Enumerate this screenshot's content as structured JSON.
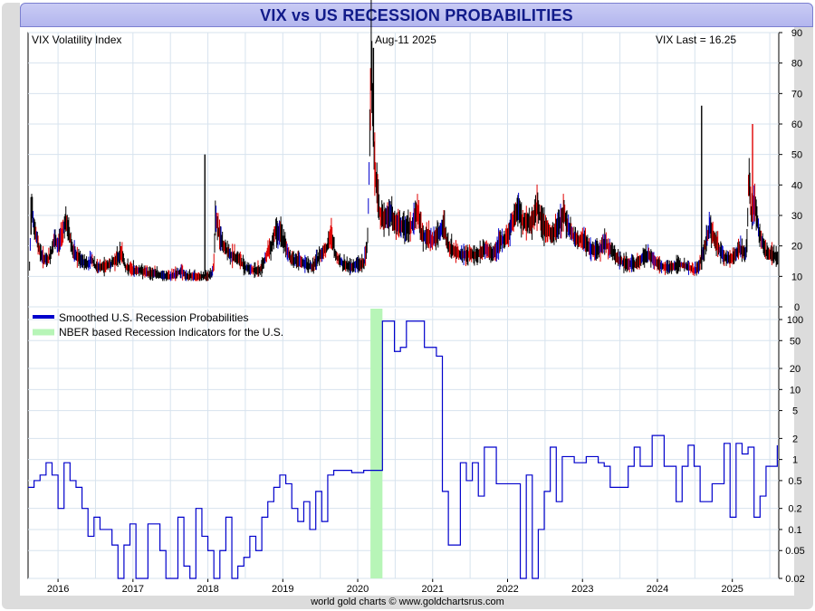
{
  "title": "VIX vs US RECESSION PROBABILITIES",
  "footer": "world gold charts © www.goldchartsrus.com",
  "colors": {
    "vix_up": "#000000",
    "vix_down": "#e00000",
    "vix_other": "#0000cc",
    "recession_prob": "#0000cc",
    "nber_band": "#b7f5b7",
    "grid": "#d7e3ee"
  },
  "chart_data": [
    {
      "type": "bar",
      "panel": "top",
      "label_left": "VIX Volatility Index",
      "label_center": "Aug-11  2025",
      "label_right": "VIX Last = 16.25",
      "ylim": [
        0,
        90
      ],
      "y_ticks": [
        0,
        10,
        20,
        30,
        40,
        50,
        60,
        70,
        80,
        90
      ],
      "x_ticks": [
        "2016",
        "2017",
        "2018",
        "2019",
        "2020",
        "2021",
        "2022",
        "2023",
        "2024",
        "2025"
      ],
      "x_range": [
        2015.6,
        2025.62
      ],
      "grid": true,
      "series": [
        {
          "name": "VIX Volatility Index",
          "x": [
            2015.62,
            2015.65,
            2015.68,
            2015.72,
            2015.76,
            2015.8,
            2015.85,
            2015.9,
            2015.95,
            2016.0,
            2016.05,
            2016.1,
            2016.15,
            2016.2,
            2016.3,
            2016.4,
            2016.45,
            2016.5,
            2016.6,
            2016.7,
            2016.8,
            2016.85,
            2016.9,
            2017.0,
            2017.1,
            2017.2,
            2017.3,
            2017.4,
            2017.5,
            2017.6,
            2017.65,
            2017.7,
            2017.8,
            2017.9,
            2018.0,
            2018.05,
            2018.08,
            2018.1,
            2018.15,
            2018.2,
            2018.3,
            2018.4,
            2018.5,
            2018.6,
            2018.7,
            2018.8,
            2018.85,
            2018.9,
            2018.97,
            2019.0,
            2019.1,
            2019.2,
            2019.3,
            2019.4,
            2019.5,
            2019.6,
            2019.65,
            2019.7,
            2019.8,
            2019.9,
            2020.0,
            2020.08,
            2020.13,
            2020.16,
            2020.18,
            2020.2,
            2020.22,
            2020.25,
            2020.3,
            2020.35,
            2020.4,
            2020.45,
            2020.5,
            2020.6,
            2020.7,
            2020.75,
            2020.8,
            2020.85,
            2020.9,
            2021.0,
            2021.1,
            2021.15,
            2021.2,
            2021.3,
            2021.4,
            2021.5,
            2021.6,
            2021.7,
            2021.8,
            2021.9,
            2022.0,
            2022.1,
            2022.15,
            2022.2,
            2022.3,
            2022.4,
            2022.45,
            2022.5,
            2022.6,
            2022.7,
            2022.75,
            2022.8,
            2022.9,
            2023.0,
            2023.1,
            2023.2,
            2023.3,
            2023.4,
            2023.5,
            2023.6,
            2023.7,
            2023.8,
            2023.9,
            2024.0,
            2024.1,
            2024.2,
            2024.3,
            2024.4,
            2024.5,
            2024.55,
            2024.6,
            2024.7,
            2024.8,
            2024.9,
            2025.0,
            2025.1,
            2025.15,
            2025.18,
            2025.2,
            2025.22,
            2025.25,
            2025.3,
            2025.35,
            2025.4,
            2025.45,
            2025.5,
            2025.55,
            2025.6
          ],
          "values": [
            13,
            35,
            26,
            22,
            18,
            16,
            15,
            17,
            22,
            20,
            24,
            28,
            24,
            18,
            15,
            14,
            16,
            13,
            13,
            14,
            16,
            18,
            13,
            12,
            12,
            11,
            11,
            10,
            10,
            11,
            12,
            10,
            10,
            10,
            10,
            11,
            14,
            30,
            24,
            20,
            17,
            16,
            13,
            12,
            12,
            18,
            20,
            25,
            24,
            22,
            16,
            15,
            14,
            13,
            17,
            20,
            24,
            17,
            14,
            13,
            14,
            14,
            20,
            55,
            85,
            65,
            48,
            40,
            30,
            28,
            30,
            30,
            27,
            26,
            26,
            28,
            32,
            24,
            23,
            22,
            24,
            27,
            20,
            18,
            17,
            17,
            17,
            19,
            17,
            21,
            23,
            30,
            32,
            28,
            27,
            33,
            28,
            26,
            23,
            28,
            31,
            27,
            22,
            22,
            19,
            18,
            21,
            18,
            15,
            14,
            14,
            16,
            17,
            14,
            13,
            13,
            14,
            13,
            12,
            13,
            17,
            26,
            20,
            16,
            16,
            19,
            18,
            17,
            22,
            45,
            30,
            35,
            25,
            21,
            18,
            17,
            17,
            16
          ],
          "spikes": [
            [
              2015.64,
              36
            ],
            [
              2017.96,
              50
            ],
            [
              2020.21,
              85
            ],
            [
              2024.59,
              66
            ],
            [
              2025.27,
              60
            ]
          ]
        }
      ]
    },
    {
      "type": "line",
      "panel": "bottom",
      "y_scale": "log",
      "y_ticks": [
        0.02,
        0.05,
        0.1,
        0.2,
        0.5,
        1,
        2,
        5,
        10,
        20,
        50,
        100
      ],
      "y_tick_labels": [
        "0.02",
        "0.05",
        "0.1",
        "0.2",
        "0.5",
        "1",
        "2",
        "5",
        "10",
        "20",
        "50",
        "100"
      ],
      "ylim": [
        0.02,
        100
      ],
      "x_ticks": [
        "2016",
        "2017",
        "2018",
        "2019",
        "2020",
        "2021",
        "2022",
        "2023",
        "2024",
        "2025"
      ],
      "x_range": [
        2015.6,
        2025.62
      ],
      "grid": true,
      "legend_position": "top-left",
      "legend": [
        "Smoothed U.S. Recession Probabilities",
        "NBER based Recession Indicators for the U.S."
      ],
      "bands": [
        {
          "name": "NBER based Recession Indicators for the U.S.",
          "x_start": 2020.17,
          "x_end": 2020.33
        }
      ],
      "series": [
        {
          "name": "Smoothed U.S. Recession Probabilities",
          "x": [
            2015.6,
            2015.68,
            2015.76,
            2015.84,
            2015.92,
            2016.0,
            2016.08,
            2016.16,
            2016.24,
            2016.32,
            2016.4,
            2016.48,
            2016.56,
            2016.64,
            2016.72,
            2016.8,
            2016.88,
            2016.96,
            2017.04,
            2017.12,
            2017.2,
            2017.28,
            2017.36,
            2017.44,
            2017.52,
            2017.6,
            2017.68,
            2017.76,
            2017.84,
            2017.92,
            2018.0,
            2018.08,
            2018.16,
            2018.24,
            2018.32,
            2018.4,
            2018.48,
            2018.56,
            2018.64,
            2018.72,
            2018.8,
            2018.88,
            2018.96,
            2019.04,
            2019.12,
            2019.2,
            2019.28,
            2019.36,
            2019.44,
            2019.52,
            2019.6,
            2019.68,
            2019.76,
            2019.84,
            2019.92,
            2020.0,
            2020.08,
            2020.17,
            2020.25,
            2020.33,
            2020.41,
            2020.49,
            2020.57,
            2020.65,
            2020.73,
            2020.81,
            2020.89,
            2020.97,
            2021.05,
            2021.13,
            2021.21,
            2021.29,
            2021.37,
            2021.45,
            2021.53,
            2021.61,
            2021.69,
            2021.77,
            2021.85,
            2021.93,
            2022.01,
            2022.09,
            2022.17,
            2022.25,
            2022.33,
            2022.41,
            2022.49,
            2022.57,
            2022.65,
            2022.73,
            2022.81,
            2022.89,
            2022.97,
            2023.05,
            2023.13,
            2023.21,
            2023.29,
            2023.37,
            2023.45,
            2023.53,
            2023.61,
            2023.69,
            2023.77,
            2023.85,
            2023.93,
            2024.01,
            2024.09,
            2024.17,
            2024.25,
            2024.33,
            2024.41,
            2024.49,
            2024.57,
            2024.65,
            2024.73,
            2024.81,
            2024.89,
            2024.97,
            2025.05,
            2025.13,
            2025.21,
            2025.29,
            2025.37,
            2025.45,
            2025.53,
            2025.6
          ],
          "values": [
            0.4,
            0.5,
            0.6,
            0.9,
            0.6,
            0.2,
            0.9,
            0.5,
            0.4,
            0.2,
            0.08,
            0.15,
            0.1,
            0.1,
            0.06,
            0.02,
            0.06,
            0.12,
            0.02,
            0.02,
            0.12,
            0.12,
            0.05,
            0.02,
            0.02,
            0.15,
            0.03,
            0.02,
            0.2,
            0.08,
            0.05,
            0.02,
            0.05,
            0.15,
            0.02,
            0.03,
            0.04,
            0.08,
            0.05,
            0.15,
            0.25,
            0.4,
            0.6,
            0.45,
            0.2,
            0.13,
            0.25,
            0.1,
            0.35,
            0.13,
            0.6,
            0.7,
            0.7,
            0.7,
            0.65,
            0.65,
            0.7,
            0.7,
            0.7,
            95,
            95,
            35,
            40,
            95,
            95,
            95,
            40,
            40,
            30,
            0.35,
            0.06,
            0.06,
            0.9,
            0.5,
            0.9,
            0.3,
            1.5,
            1.5,
            0.45,
            0.45,
            0.45,
            0.45,
            0.02,
            0.6,
            0.02,
            0.1,
            0.35,
            1.5,
            0.25,
            1.1,
            1.1,
            0.9,
            0.9,
            1.1,
            1.1,
            0.9,
            0.8,
            0.4,
            0.4,
            0.4,
            0.8,
            1.5,
            0.8,
            0.8,
            2.2,
            2.2,
            0.8,
            0.8,
            0.25,
            0.8,
            1.6,
            0.8,
            0.25,
            0.25,
            0.45,
            0.45,
            1.7,
            0.15,
            1.7,
            1.2,
            1.5,
            0.15,
            0.3,
            0.8,
            0.8,
            1.6
          ]
        }
      ]
    }
  ]
}
